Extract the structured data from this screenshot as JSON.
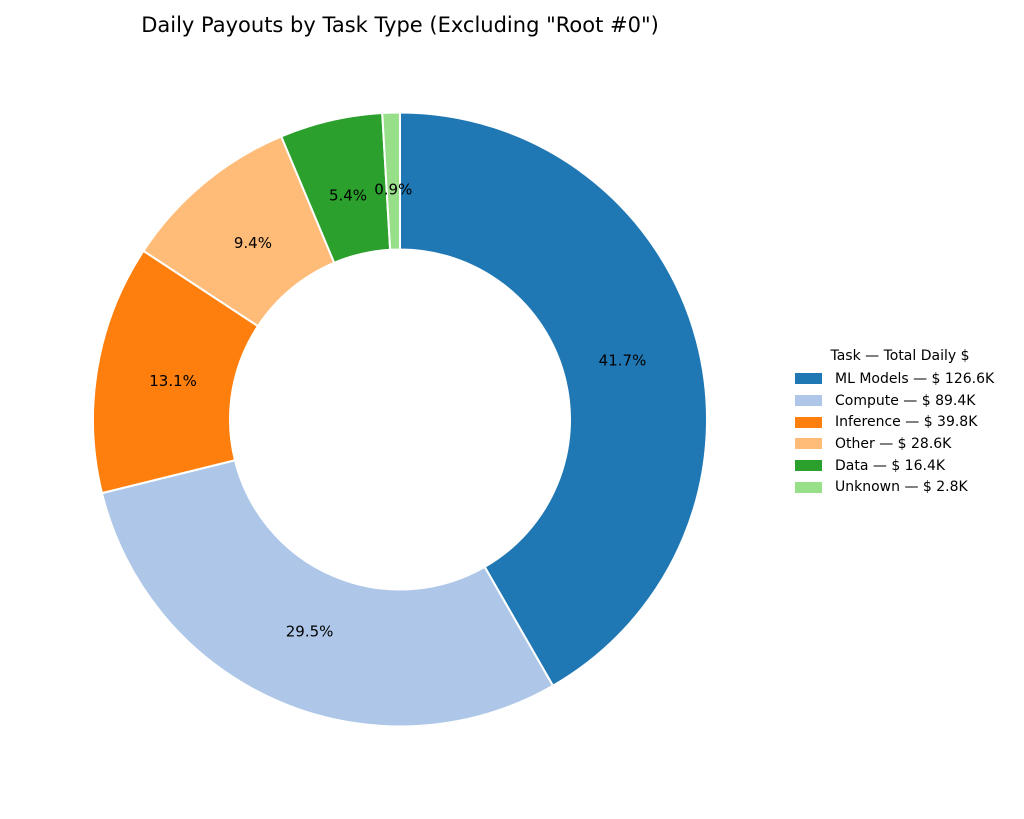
{
  "chart_data": {
    "type": "pie",
    "variant": "donut",
    "title": "Daily Payouts by Task Type (Excluding \"Root #0\")",
    "legend_title": "Task — Total Daily $",
    "categories": [
      "ML Models",
      "Compute",
      "Inference",
      "Other",
      "Data",
      "Unknown"
    ],
    "values_total_daily_usd_thousands": [
      126.6,
      89.4,
      39.8,
      28.6,
      16.4,
      2.8
    ],
    "percent_labels": [
      "41.7%",
      "29.5%",
      "13.1%",
      "9.4%",
      "5.4%",
      "0.9%"
    ],
    "legend_labels": [
      "ML Models — $ 126.6K",
      "Compute — $ 89.4K",
      "Inference — $ 39.8K",
      "Other — $ 28.6K",
      "Data — $ 16.4K",
      "Unknown — $ 2.8K"
    ],
    "colors": [
      "#1f77b4",
      "#aec7e8",
      "#ff7f0e",
      "#ffbb78",
      "#2ca02c",
      "#98df8a"
    ],
    "layout": {
      "start": "12-o'clock",
      "direction": "clockwise",
      "inner_radius_ratio": 0.554,
      "pct_label_radius_ratio": 0.75,
      "legend_position": "center-right",
      "wedge_edge_color": "#ffffff",
      "label_color": "#000000"
    }
  }
}
